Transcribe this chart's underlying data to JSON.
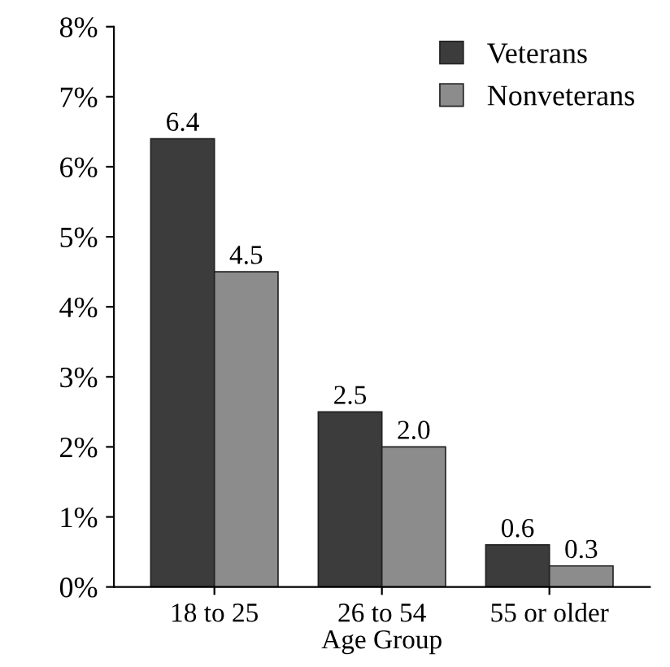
{
  "chart_data": {
    "type": "bar",
    "xlabel": "Age Group",
    "categories": [
      "18 to 25",
      "26 to 54",
      "55 or older"
    ],
    "series": [
      {
        "name": "Veterans",
        "color": "#3c3c3c",
        "values": [
          6.4,
          2.5,
          0.6
        ],
        "value_labels": [
          "6.4",
          "2.5",
          "0.6"
        ]
      },
      {
        "name": "Nonveterans",
        "color": "#8c8c8c",
        "values": [
          4.5,
          2.0,
          0.3
        ],
        "value_labels": [
          "4.5",
          "2.0",
          "0.3"
        ]
      }
    ],
    "ylim": [
      0,
      8
    ],
    "yticks": [
      {
        "value": 0,
        "label": "0%"
      },
      {
        "value": 1,
        "label": "1%"
      },
      {
        "value": 2,
        "label": "2%"
      },
      {
        "value": 3,
        "label": "3%"
      },
      {
        "value": 4,
        "label": "4%"
      },
      {
        "value": 5,
        "label": "5%"
      },
      {
        "value": 6,
        "label": "6%"
      },
      {
        "value": 7,
        "label": "7%"
      },
      {
        "value": 8,
        "label": "8%"
      }
    ],
    "legend": "top right",
    "grid": false
  }
}
